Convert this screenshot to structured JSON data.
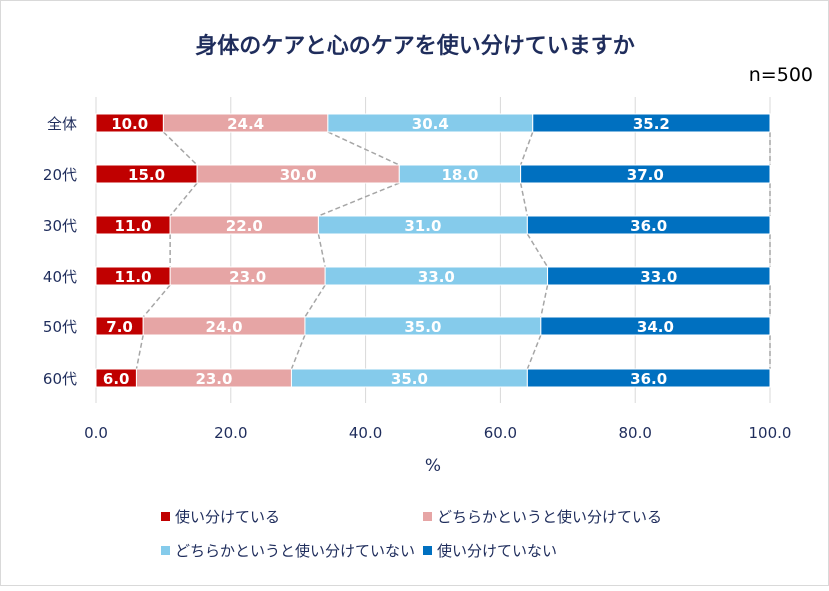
{
  "chart_data": {
    "type": "bar",
    "stacked": true,
    "orientation": "horizontal",
    "title": "身体のケアと心のケアを使い分けていますか",
    "subtitle": "n=500",
    "xlabel": "%",
    "ylabel": "",
    "xlim": [
      0,
      100
    ],
    "xticks": [
      "0.0",
      "20.0",
      "40.0",
      "60.0",
      "80.0",
      "100.0"
    ],
    "grid": true,
    "legend_position": "bottom",
    "categories": [
      "全体",
      "20代",
      "30代",
      "40代",
      "50代",
      "60代"
    ],
    "series": [
      {
        "name": "使い分けている",
        "color": "#c00000",
        "values": [
          10.0,
          15.0,
          11.0,
          11.0,
          7.0,
          6.0
        ]
      },
      {
        "name": "どちらかというと使い分けている",
        "color": "#e6a5a5",
        "values": [
          24.4,
          30.0,
          22.0,
          23.0,
          24.0,
          23.0
        ]
      },
      {
        "name": "どちらかというと使い分けていない",
        "color": "#85cbeb",
        "values": [
          30.4,
          18.0,
          31.0,
          33.0,
          35.0,
          35.0
        ]
      },
      {
        "name": "使い分けていない",
        "color": "#0070c0",
        "values": [
          35.2,
          37.0,
          36.0,
          33.0,
          34.0,
          36.0
        ]
      }
    ],
    "series_lines": true
  }
}
